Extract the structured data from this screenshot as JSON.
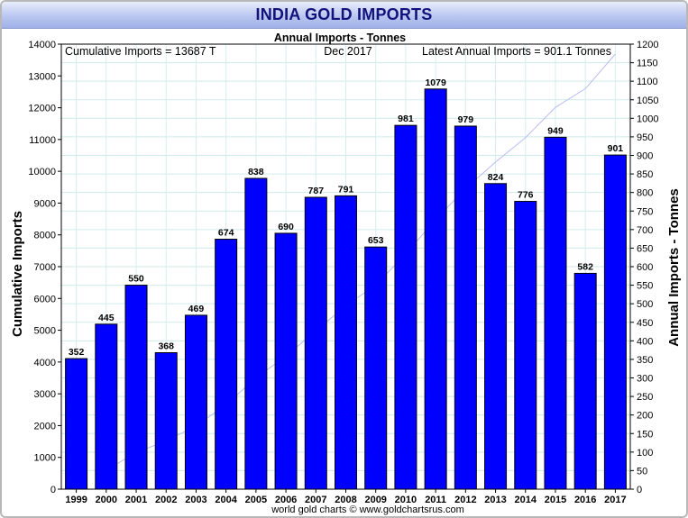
{
  "chart_data": {
    "type": "bar",
    "title": "INDIA GOLD IMPORTS",
    "subtitle": "Annual Imports - Tonnes",
    "header_left": "Cumulative Imports = 13687 T",
    "header_center": "Dec 2017",
    "header_right": "Latest Annual Imports = 901.1 Tonnes",
    "credit": "world gold charts © www.goldchartsrus.com",
    "ylabel_left": "Cumulative Imports",
    "ylabel_right": "Annual Imports - Tonnes",
    "categories": [
      "1999",
      "2000",
      "2001",
      "2002",
      "2003",
      "2004",
      "2005",
      "2006",
      "2007",
      "2008",
      "2009",
      "2010",
      "2011",
      "2012",
      "2013",
      "2014",
      "2015",
      "2016",
      "2017"
    ],
    "values": [
      352,
      445,
      550,
      368,
      469,
      674,
      838,
      690,
      787,
      791,
      653,
      981,
      1079,
      979,
      824,
      776,
      949,
      582,
      901
    ],
    "value_labels": [
      "352",
      "445",
      "550",
      "368",
      "469",
      "674",
      "838",
      "690",
      "787",
      "791",
      "653",
      "981",
      "1079",
      "979",
      "824",
      "776",
      "949",
      "582",
      "901"
    ],
    "ylim_right": [
      0,
      1200
    ],
    "yticks_right": [
      "0",
      "50",
      "100",
      "150",
      "200",
      "250",
      "300",
      "350",
      "400",
      "450",
      "500",
      "550",
      "600",
      "650",
      "700",
      "750",
      "800",
      "850",
      "900",
      "950",
      "1000",
      "1050",
      "1100",
      "1150",
      "1200"
    ],
    "ylim_left": [
      0,
      14000
    ],
    "yticks_left": [
      "0",
      "1000",
      "2000",
      "3000",
      "4000",
      "5000",
      "6000",
      "7000",
      "8000",
      "9000",
      "10000",
      "11000",
      "12000",
      "13000",
      "14000"
    ],
    "cumulative_series": {
      "x": [
        "2000",
        "2001",
        "2002",
        "2003",
        "2004",
        "2005",
        "2006",
        "2007",
        "2008",
        "2009",
        "2010",
        "2011",
        "2012",
        "2013",
        "2014",
        "2015",
        "2016",
        "2017"
      ],
      "values": [
        600,
        1150,
        1520,
        1990,
        2660,
        3500,
        4190,
        4980,
        5770,
        6420,
        7400,
        8480,
        9460,
        10290,
        11060,
        12010,
        12600,
        13687
      ]
    },
    "bar_color": "#0000ff",
    "line_color": "#b8bdf2",
    "grid": true,
    "legend": "none"
  }
}
